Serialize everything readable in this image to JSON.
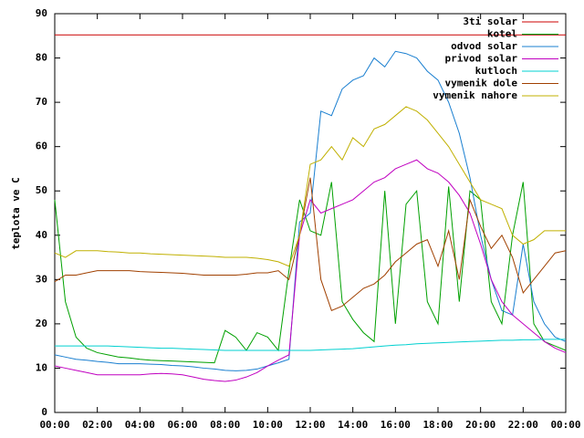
{
  "chart_data": {
    "type": "line",
    "ylabel": "teplota ve C",
    "x": [
      0,
      0.5,
      1,
      1.5,
      2,
      2.5,
      3,
      3.5,
      4,
      4.5,
      5,
      5.5,
      6,
      6.5,
      7,
      7.5,
      8,
      8.5,
      9,
      9.5,
      10,
      10.5,
      11,
      11.5,
      12,
      12.5,
      13,
      13.5,
      14,
      14.5,
      15,
      15.5,
      16,
      16.5,
      17,
      17.5,
      18,
      18.5,
      19,
      19.5,
      20,
      20.5,
      21,
      21.5,
      22,
      22.5,
      23,
      23.5,
      24
    ],
    "xlim": [
      0,
      24
    ],
    "xticks": [
      {
        "value": 0,
        "label": "00:00"
      },
      {
        "value": 2,
        "label": "02:00"
      },
      {
        "value": 4,
        "label": "04:00"
      },
      {
        "value": 6,
        "label": "06:00"
      },
      {
        "value": 8,
        "label": "08:00"
      },
      {
        "value": 10,
        "label": "10:00"
      },
      {
        "value": 12,
        "label": "12:00"
      },
      {
        "value": 14,
        "label": "14:00"
      },
      {
        "value": 16,
        "label": "16:00"
      },
      {
        "value": 18,
        "label": "18:00"
      },
      {
        "value": 20,
        "label": "20:00"
      },
      {
        "value": 22,
        "label": "22:00"
      },
      {
        "value": 24,
        "label": "00:00"
      }
    ],
    "ylim": [
      0,
      90
    ],
    "yticks": [
      0,
      10,
      20,
      30,
      40,
      50,
      60,
      70,
      80,
      90
    ],
    "legend": "top-right",
    "series": [
      {
        "name": "3ti solar",
        "color": "#cc0000",
        "values": [
          85.2,
          85.2,
          85.2,
          85.2,
          85.2,
          85.2,
          85.2,
          85.2,
          85.2,
          85.2,
          85.2,
          85.2,
          85.2,
          85.2,
          85.2,
          85.2,
          85.2,
          85.2,
          85.2,
          85.2,
          85.2,
          85.2,
          85.2,
          85.2,
          85.2,
          85.2,
          85.2,
          85.2,
          85.2,
          85.2,
          85.2,
          85.2,
          85.2,
          85.2,
          85.2,
          85.2,
          85.2,
          85.2,
          85.2,
          85.2,
          85.2,
          85.2,
          85.2,
          85.2,
          85.2,
          85.2,
          85.2,
          85.2,
          85.2
        ]
      },
      {
        "name": "kotel",
        "color": "#00a000",
        "values": [
          48,
          25,
          17,
          14.5,
          13.5,
          13,
          12.5,
          12.3,
          12,
          11.8,
          11.7,
          11.6,
          11.5,
          11.4,
          11.3,
          11.2,
          18.5,
          17,
          14,
          18,
          17,
          14,
          32,
          48,
          41,
          40,
          52,
          25,
          21,
          18,
          16,
          50,
          20,
          47,
          50,
          25,
          20,
          51,
          25,
          50,
          48,
          25,
          20,
          40,
          52,
          20,
          16,
          15,
          14
        ]
      },
      {
        "name": "odvod solar",
        "color": "#1a7fd0",
        "values": [
          13,
          12.5,
          12,
          11.8,
          11.5,
          11.3,
          11,
          11,
          11,
          10.9,
          10.8,
          10.6,
          10.5,
          10.3,
          10,
          9.8,
          9.5,
          9.4,
          9.5,
          9.8,
          10.5,
          11.2,
          12,
          43,
          45,
          68,
          67,
          73,
          75,
          76,
          80,
          78,
          81.5,
          81,
          80,
          77,
          75,
          70,
          63,
          53,
          40,
          30,
          23,
          22,
          38,
          25,
          20,
          17,
          16
        ]
      },
      {
        "name": "privod solar",
        "color": "#c000c0",
        "values": [
          10.5,
          10,
          9.5,
          9,
          8.5,
          8.5,
          8.5,
          8.5,
          8.5,
          8.7,
          8.8,
          8.7,
          8.5,
          8,
          7.5,
          7.2,
          7,
          7.3,
          8,
          9,
          10.5,
          11.8,
          13,
          40,
          48,
          45,
          46,
          47,
          48,
          50,
          52,
          53,
          55,
          56,
          57,
          55,
          54,
          52,
          49,
          45,
          38,
          30,
          25,
          22,
          20,
          18,
          16,
          14.5,
          13.5
        ]
      },
      {
        "name": "kutloch",
        "color": "#00d0d0",
        "values": [
          15,
          15,
          15,
          15,
          15,
          15,
          14.9,
          14.8,
          14.7,
          14.6,
          14.5,
          14.5,
          14.4,
          14.3,
          14.2,
          14.1,
          14,
          14,
          14,
          14,
          14,
          14,
          14,
          14,
          14,
          14.1,
          14.2,
          14.3,
          14.4,
          14.6,
          14.8,
          15,
          15.2,
          15.3,
          15.5,
          15.6,
          15.7,
          15.8,
          15.9,
          16,
          16.1,
          16.2,
          16.3,
          16.3,
          16.4,
          16.4,
          16.5,
          16.5,
          16.5
        ]
      },
      {
        "name": "vymenik dole",
        "color": "#a04000",
        "values": [
          29.5,
          31,
          31,
          31.5,
          32,
          32,
          32,
          32,
          31.8,
          31.7,
          31.6,
          31.5,
          31.4,
          31.2,
          31,
          31,
          31,
          31,
          31.2,
          31.5,
          31.5,
          32,
          30,
          40,
          53,
          30,
          23,
          24,
          26,
          28,
          29,
          31,
          34,
          36,
          38,
          39,
          33,
          41,
          30,
          48,
          42,
          37,
          40,
          35,
          27,
          30,
          33,
          36,
          36.5
        ]
      },
      {
        "name": "vymenik nahore",
        "color": "#c0b000",
        "values": [
          36,
          35,
          36.5,
          36.5,
          36.5,
          36.3,
          36.2,
          36,
          36,
          35.8,
          35.7,
          35.6,
          35.5,
          35.4,
          35.3,
          35.2,
          35,
          35,
          35,
          34.8,
          34.5,
          34,
          33,
          40,
          56,
          57,
          60,
          57,
          62,
          60,
          64,
          65,
          67,
          69,
          68,
          66,
          63,
          60,
          56,
          52,
          48,
          47,
          46,
          40,
          38,
          39,
          41,
          41,
          41
        ]
      }
    ]
  }
}
